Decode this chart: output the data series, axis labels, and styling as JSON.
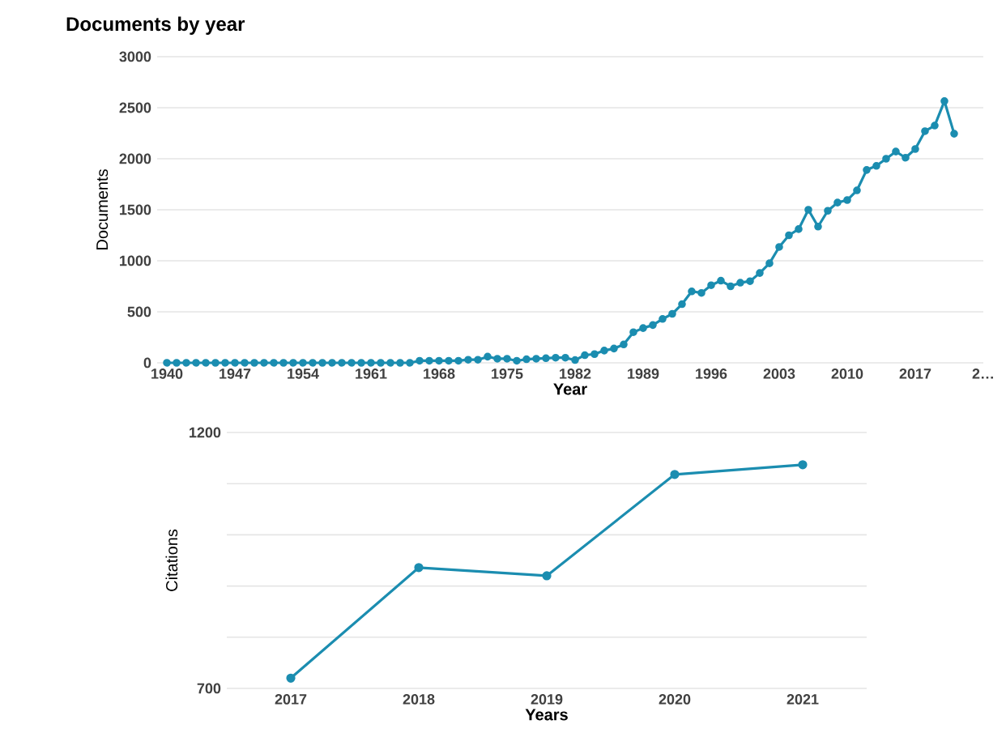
{
  "chart_data": [
    {
      "type": "line",
      "title": "Documents by year",
      "xlabel": "Year",
      "ylabel": "Documents",
      "x": [
        1940,
        1941,
        1942,
        1943,
        1944,
        1945,
        1946,
        1947,
        1948,
        1949,
        1950,
        1951,
        1952,
        1953,
        1954,
        1955,
        1956,
        1957,
        1958,
        1959,
        1960,
        1961,
        1962,
        1963,
        1964,
        1965,
        1966,
        1967,
        1968,
        1969,
        1970,
        1971,
        1972,
        1973,
        1974,
        1975,
        1976,
        1977,
        1978,
        1979,
        1980,
        1981,
        1982,
        1983,
        1984,
        1985,
        1986,
        1987,
        1988,
        1989,
        1990,
        1991,
        1992,
        1993,
        1994,
        1995,
        1996,
        1997,
        1998,
        1999,
        2000,
        2001,
        2002,
        2003,
        2004,
        2005,
        2006,
        2007,
        2008,
        2009,
        2010,
        2011,
        2012,
        2013,
        2014,
        2015,
        2016,
        2017,
        2018,
        2019,
        2020,
        2021
      ],
      "values": [
        0,
        0,
        0,
        0,
        0,
        0,
        0,
        0,
        0,
        0,
        0,
        0,
        0,
        0,
        0,
        0,
        0,
        0,
        0,
        0,
        0,
        0,
        0,
        0,
        0,
        0,
        20,
        20,
        20,
        20,
        20,
        30,
        30,
        60,
        40,
        40,
        20,
        35,
        40,
        45,
        50,
        50,
        27,
        75,
        85,
        120,
        140,
        180,
        300,
        340,
        370,
        430,
        480,
        575,
        700,
        685,
        760,
        805,
        750,
        785,
        800,
        880,
        975,
        1135,
        1250,
        1310,
        1500,
        1335,
        1490,
        1570,
        1595,
        1690,
        1890,
        1930,
        2000,
        2070,
        2010,
        2095,
        2270,
        2325,
        2565,
        2245
      ],
      "color": "#1b8db0",
      "marker": "circle",
      "grid": "y",
      "xlim": [
        1939,
        2024
      ],
      "xticks": [
        1940,
        1947,
        1954,
        1961,
        1968,
        1975,
        1982,
        1989,
        1996,
        2003,
        2010,
        2017,
        {
          "value": 2024,
          "label": "2…"
        }
      ],
      "ylim": [
        0,
        3000
      ],
      "yticks": [
        0,
        500,
        1000,
        1500,
        2000,
        2500,
        3000
      ]
    },
    {
      "type": "line",
      "xlabel": "Years",
      "ylabel": "Citations",
      "categories": [
        "2017",
        "2018",
        "2019",
        "2020",
        "2021"
      ],
      "values": [
        720,
        936,
        920,
        1118,
        1137
      ],
      "color": "#1b8db0",
      "marker": "circle",
      "grid": "y",
      "ylim": [
        700,
        1200
      ],
      "yticks": [
        700,
        {
          "value": 800,
          "label": null
        },
        {
          "value": 900,
          "label": null
        },
        {
          "value": 1000,
          "label": null
        },
        {
          "value": 1100,
          "label": null
        },
        1200
      ]
    }
  ]
}
